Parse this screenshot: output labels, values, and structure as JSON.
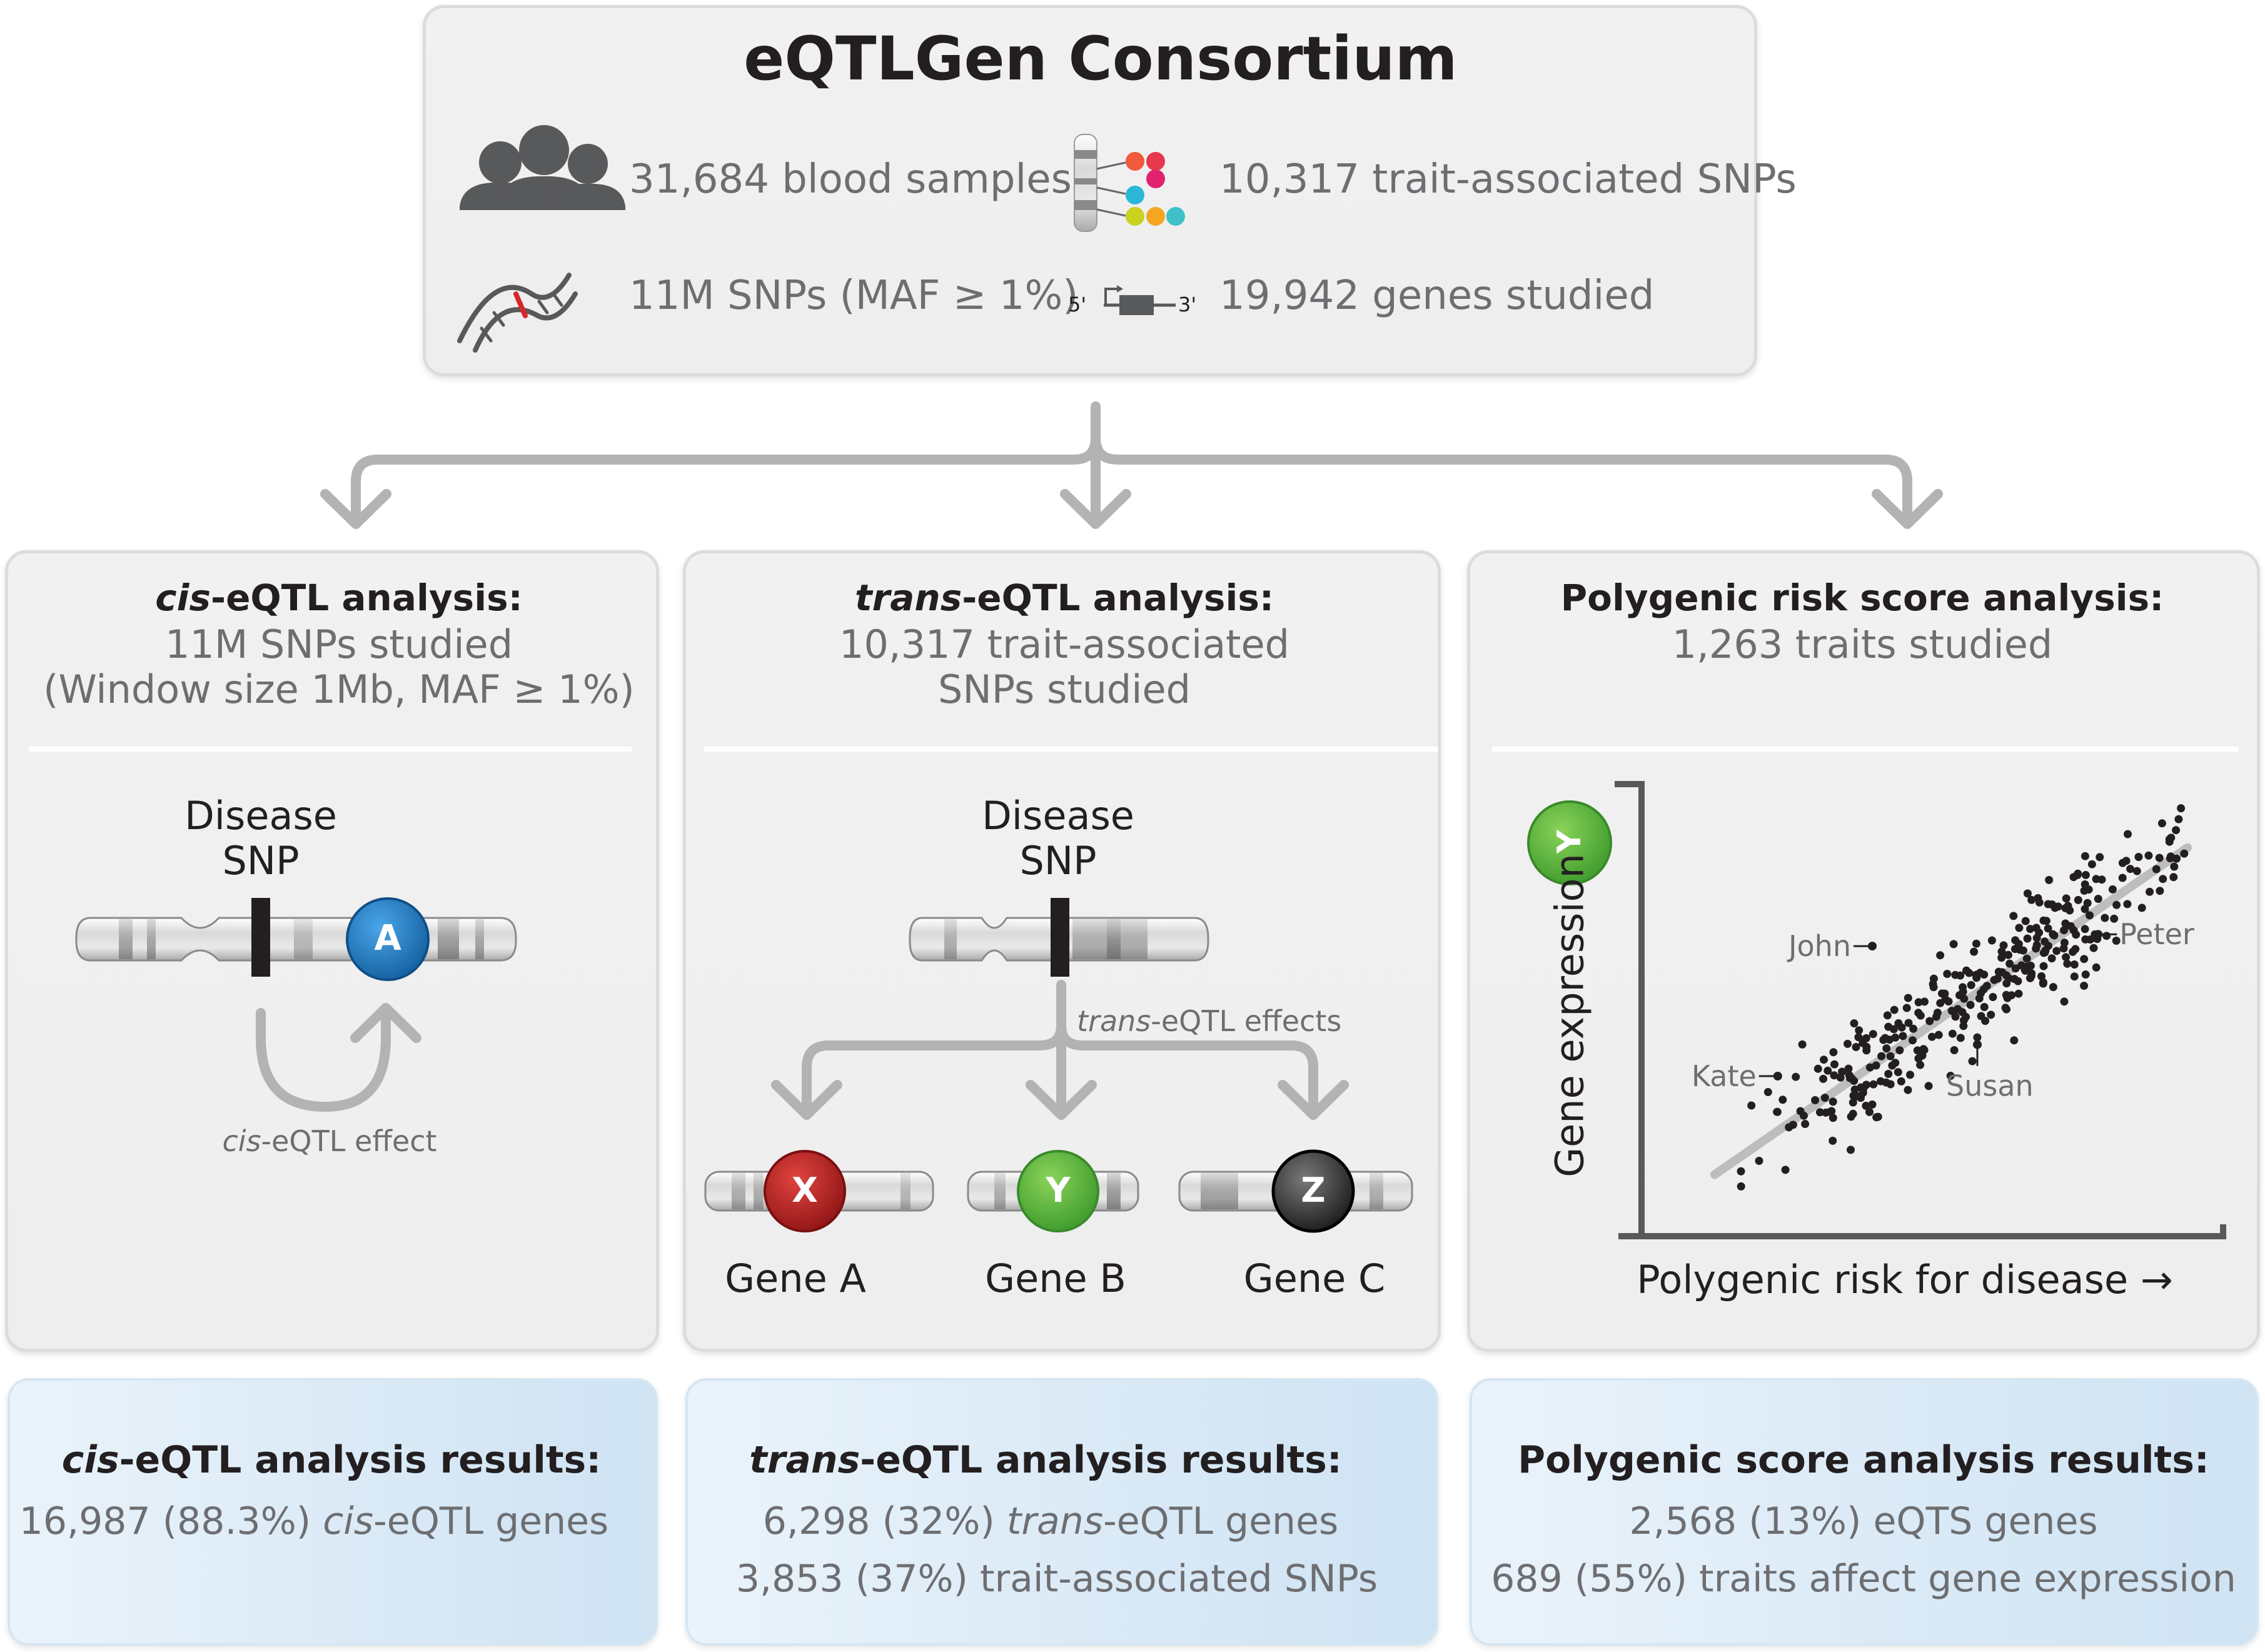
{
  "header": {
    "title": "eQTLGen Consortium",
    "stats": {
      "samples": "31,684 blood samples",
      "snps_total": "11M SNPs (MAF ≥ 1%)",
      "trait_snps": "10,317 trait-associated SNPs",
      "genes": "19,942 genes studied",
      "gene_5prime": "5'",
      "gene_3prime": "3'"
    }
  },
  "cis": {
    "title_italic": "cis",
    "title_rest": "-eQTL analysis:",
    "line1": "11M SNPs studied",
    "line2": "(Window size 1Mb, MAF ≥ 1%)",
    "disease_line1": "Disease",
    "disease_line2": "SNP",
    "gene_letter": "A",
    "effect_italic": "cis",
    "effect_rest": "-eQTL effect",
    "results_title_italic": "cis",
    "results_title_rest": "-eQTL analysis results:",
    "results_line1_pre": "16,987 (88.3%) ",
    "results_line1_italic": "cis",
    "results_line1_post": "-eQTL genes"
  },
  "trans": {
    "title_italic": "trans",
    "title_rest": "-eQTL analysis:",
    "line1": "10,317 trait-associated",
    "line2": "SNPs studied",
    "disease_line1": "Disease",
    "disease_line2": "SNP",
    "effects_italic": "trans",
    "effects_rest": "-eQTL effects",
    "genes": [
      {
        "letter": "X",
        "label": "Gene A",
        "color": "#c8211f"
      },
      {
        "letter": "Y",
        "label": "Gene B",
        "color": "#57b947"
      },
      {
        "letter": "Z",
        "label": "Gene C",
        "color": "#3a3a3a"
      }
    ],
    "results_title_italic": "trans",
    "results_title_rest": "-eQTL analysis results:",
    "results_line1_pre": "6,298 (32%) ",
    "results_line1_italic": "trans",
    "results_line1_post": "-eQTL genes",
    "results_line2": "3,853 (37%) trait-associated SNPs"
  },
  "prs": {
    "title": "Polygenic risk score analysis:",
    "line1": "1,263 traits studied",
    "gene_letter": "Y",
    "results_title": "Polygenic score analysis results:",
    "results_line1": "2,568 (13%) eQTS genes",
    "results_line2": "689 (55%) traits affect gene expression"
  },
  "chart_data": {
    "type": "scatter",
    "xlabel": "Polygenic risk for disease →",
    "ylabel": "Gene expression",
    "xlim": [
      0,
      100
    ],
    "ylim": [
      0,
      100
    ],
    "trend_line": {
      "x": [
        5,
        95
      ],
      "y": [
        5,
        88
      ]
    },
    "annotations": [
      {
        "label": "John",
        "x": 35,
        "y": 63
      },
      {
        "label": "Peter",
        "x": 78,
        "y": 66
      },
      {
        "label": "Kate",
        "x": 17,
        "y": 30
      },
      {
        "label": "Susan",
        "x": 55,
        "y": 38
      }
    ],
    "n_points": 320,
    "point_color": "#231f20",
    "line_color": "#bdbdbd"
  },
  "colors": {
    "gene_a_blue": "#1e82cf",
    "arrow_gray": "#b3b3b3",
    "y_green": "#57b947"
  }
}
